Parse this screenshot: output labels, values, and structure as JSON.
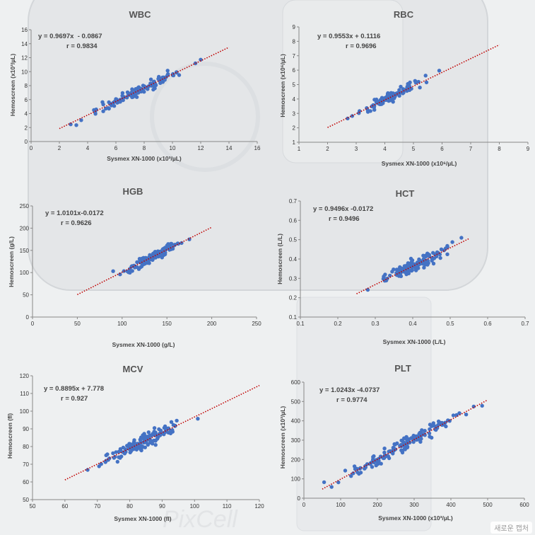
{
  "colors": {
    "point": "#4472c4",
    "fit": "#c00000",
    "axis": "#888888",
    "text": "#444444"
  },
  "watermark": "새로운 캡처",
  "chart_data": [
    {
      "id": "wbc",
      "type": "scatter",
      "title": "WBC",
      "equation": "y = 0.9697x  - 0.0867",
      "r_label": "r = 0.9834",
      "xlabel": "Sysmex XN-1000 (x10³/µL)",
      "ylabel": "Hemoscreen (x10³/µL)",
      "xlim": [
        0,
        16
      ],
      "ylim": [
        0,
        16
      ],
      "xticks": [
        0,
        2,
        4,
        6,
        8,
        10,
        12,
        14,
        16
      ],
      "yticks": [
        0,
        2,
        4,
        6,
        8,
        10,
        12,
        14,
        16
      ],
      "fit": {
        "slope": 0.9697,
        "intercept": -0.0867,
        "x_range": [
          2,
          14
        ]
      },
      "points": {
        "n": 120,
        "x_range": [
          2.8,
          12
        ],
        "spread": 0.35,
        "seed": 11
      }
    },
    {
      "id": "rbc",
      "type": "scatter",
      "title": "RBC",
      "equation": "y = 0.9553x + 0.1116",
      "r_label": "r = 0.9696",
      "xlabel": "Sysmex XN-1000 (x10⁶/µL)",
      "ylabel": "Hemoscreen (x10⁶/µL)",
      "xlim": [
        1,
        9
      ],
      "ylim": [
        1,
        9
      ],
      "xticks": [
        1,
        2,
        3,
        4,
        5,
        6,
        7,
        8,
        9
      ],
      "yticks": [
        1,
        2,
        3,
        4,
        5,
        6,
        7,
        8,
        9
      ],
      "fit": {
        "slope": 0.9553,
        "intercept": 0.1116,
        "x_range": [
          2,
          8
        ]
      },
      "points": {
        "n": 110,
        "x_range": [
          2.7,
          5.9
        ],
        "spread": 0.15,
        "seed": 23
      }
    },
    {
      "id": "hgb",
      "type": "scatter",
      "title": "HGB",
      "equation": "y = 1.0101x-0.0172",
      "r_label": "r = 0.9626",
      "xlabel": "Sysmex XN-1000 (g/L)",
      "ylabel": "Hemoscreen (g/L)",
      "xlim": [
        0,
        250
      ],
      "ylim": [
        0,
        250
      ],
      "xticks": [
        0,
        50,
        100,
        150,
        200,
        250
      ],
      "yticks": [
        0,
        50,
        100,
        150,
        200,
        250
      ],
      "fit": {
        "slope": 1.0101,
        "intercept": -0.0172,
        "x_range": [
          50,
          200
        ]
      },
      "points": {
        "n": 130,
        "x_range": [
          90,
          175
        ],
        "spread": 5,
        "seed": 37
      }
    },
    {
      "id": "hct",
      "type": "scatter",
      "title": "HCT",
      "equation": "y = 0.9496x -0.0172",
      "r_label": "r = 0.9496",
      "xlabel": "Sysmex XN-1000 (L/L)",
      "ylabel": "Hemoscreen (L/L)",
      "xlim": [
        0.1,
        0.7
      ],
      "ylim": [
        0.1,
        0.7
      ],
      "xticks": [
        0.1,
        0.2,
        0.3,
        0.4,
        0.5,
        0.6,
        0.7
      ],
      "yticks": [
        0.1,
        0.2,
        0.3,
        0.4,
        0.5,
        0.6,
        0.7
      ],
      "fit": {
        "slope": 0.9496,
        "intercept": -0.0172,
        "x_range": [
          0.25,
          0.55
        ]
      },
      "points": {
        "n": 120,
        "x_range": [
          0.28,
          0.53
        ],
        "spread": 0.018,
        "seed": 41
      }
    },
    {
      "id": "mcv",
      "type": "scatter",
      "title": "MCV",
      "equation": "y = 0.8895x + 7.778",
      "r_label": "r = 0.927",
      "xlabel": "Sysmex XN-1000 (fl)",
      "ylabel": "Hemoscreen (fl)",
      "xlim": [
        50,
        120
      ],
      "ylim": [
        50,
        120
      ],
      "xticks": [
        50,
        60,
        70,
        80,
        90,
        100,
        110,
        120
      ],
      "yticks": [
        50,
        60,
        70,
        80,
        90,
        100,
        110,
        120
      ],
      "fit": {
        "slope": 0.8895,
        "intercept": 7.778,
        "x_range": [
          60,
          120
        ]
      },
      "points": {
        "n": 140,
        "x_range": [
          67,
          101
        ],
        "spread": 2.2,
        "seed": 53
      }
    },
    {
      "id": "plt",
      "type": "scatter",
      "title": "PLT",
      "equation": "y = 1.0243x -4.0737",
      "r_label": "r = 0.9774",
      "xlabel": "Sysmex XN-1000 (x10³/µL)",
      "ylabel": "Hemoscreen (x10³/µL)",
      "xlim": [
        0,
        600
      ],
      "ylim": [
        0,
        600
      ],
      "xticks": [
        0,
        100,
        200,
        300,
        400,
        500,
        600
      ],
      "yticks": [
        0,
        100,
        200,
        300,
        400,
        500,
        600
      ],
      "fit": {
        "slope": 1.0243,
        "intercept": -4.0737,
        "x_range": [
          50,
          500
        ]
      },
      "points": {
        "n": 150,
        "x_range": [
          55,
          485
        ],
        "spread": 16,
        "seed": 67
      }
    }
  ]
}
